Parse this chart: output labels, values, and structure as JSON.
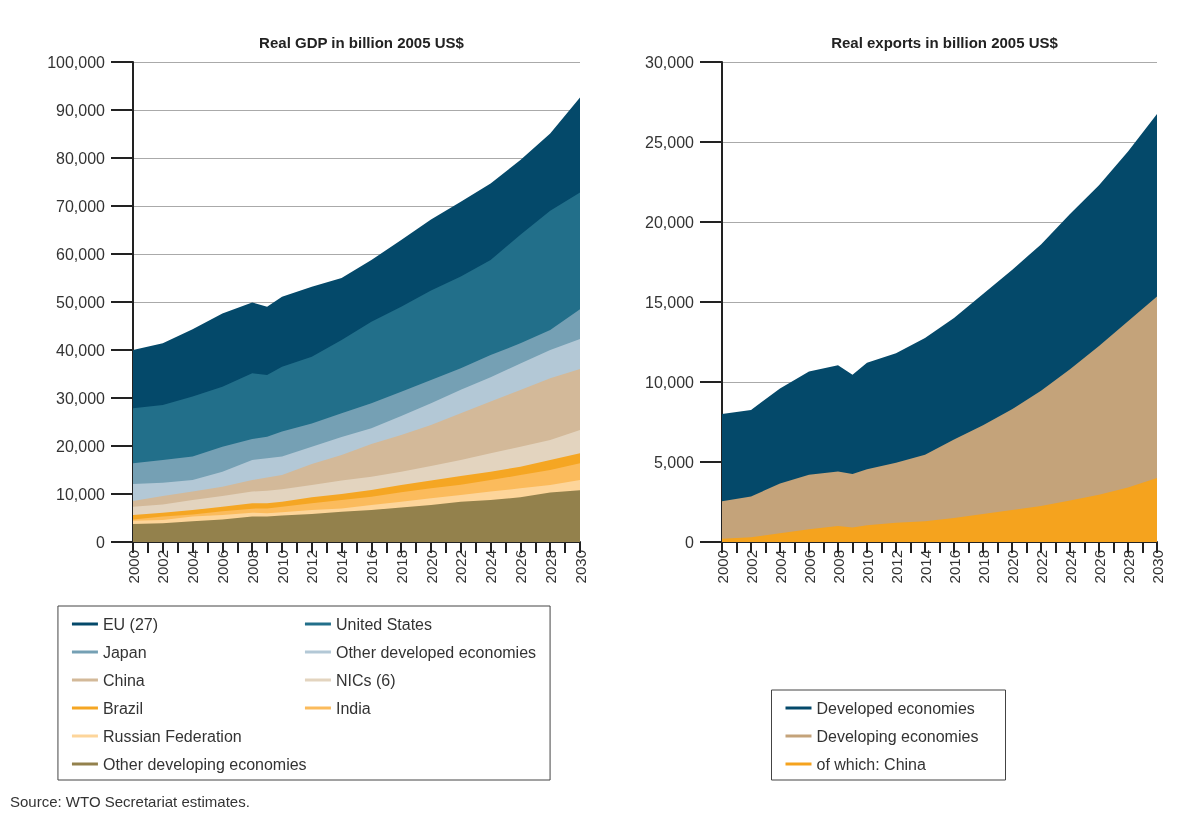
{
  "chart_data": [
    {
      "type": "area",
      "title": "Real GDP in billion 2005 US$",
      "stacked": true,
      "grid": "y",
      "legend": "bottom",
      "marker": "none",
      "x": [
        2000,
        2002,
        2004,
        2006,
        2008,
        2009,
        2010,
        2012,
        2014,
        2016,
        2018,
        2020,
        2022,
        2024,
        2026,
        2028,
        2030
      ],
      "xlim": [
        2000,
        2030
      ],
      "xticks": [
        2000,
        {
          "value": 2001,
          "label": null
        },
        2002,
        {
          "value": 2003,
          "label": null
        },
        2004,
        {
          "value": 2005,
          "label": null
        },
        2006,
        {
          "value": 2007,
          "label": null
        },
        2008,
        {
          "value": 2009,
          "label": null
        },
        2010,
        {
          "value": 2011,
          "label": null
        },
        2012,
        {
          "value": 2013,
          "label": null
        },
        2014,
        {
          "value": 2015,
          "label": null
        },
        2016,
        {
          "value": 2017,
          "label": null
        },
        2018,
        {
          "value": 2019,
          "label": null
        },
        2020,
        {
          "value": 2021,
          "label": null
        },
        2022,
        {
          "value": 2023,
          "label": null
        },
        2024,
        {
          "value": 2025,
          "label": null
        },
        2026,
        {
          "value": 2027,
          "label": null
        },
        2028,
        {
          "value": 2029,
          "label": null
        },
        2030
      ],
      "ylim": [
        0,
        100000
      ],
      "yticks": [
        0,
        {
          "value": 10000,
          "label": "10,000"
        },
        {
          "value": 20000,
          "label": "20,000"
        },
        {
          "value": 30000,
          "label": "30,000"
        },
        {
          "value": 40000,
          "label": "40,000"
        },
        {
          "value": 50000,
          "label": "50,000"
        },
        {
          "value": 60000,
          "label": "60,000"
        },
        {
          "value": 70000,
          "label": "70,000"
        },
        {
          "value": 80000,
          "label": "80,000"
        },
        {
          "value": 90000,
          "label": "90,000"
        },
        {
          "value": 100000,
          "label": "100,000"
        }
      ],
      "series": [
        {
          "name": "Other developing economies",
          "color": "#93814c",
          "values": [
            3750,
            3900,
            4300,
            4700,
            5300,
            5300,
            5500,
            5850,
            6300,
            6650,
            7200,
            7700,
            8400,
            8750,
            9300,
            10300,
            10800
          ]
        },
        {
          "name": "Russian Federation",
          "color": "#fdd59a",
          "values": [
            700,
            700,
            1000,
            900,
            800,
            700,
            700,
            800,
            700,
            1050,
            1200,
            1400,
            1400,
            1750,
            1900,
            1600,
            2100
          ]
        },
        {
          "name": "India",
          "color": "#fbbb5c",
          "values": [
            250,
            700,
            450,
            800,
            850,
            1000,
            1150,
            1400,
            1750,
            1750,
            1950,
            2100,
            2150,
            2400,
            2750,
            3100,
            3500
          ]
        },
        {
          "name": "Brazil",
          "color": "#f5a623",
          "values": [
            900,
            800,
            900,
            950,
            1100,
            1050,
            1050,
            1250,
            1250,
            1400,
            1550,
            1600,
            1800,
            1750,
            1750,
            2100,
            2100
          ]
        },
        {
          "name": "NICs (6)",
          "color": "#e3d4bf",
          "values": [
            1750,
            1700,
            2100,
            2250,
            2450,
            2650,
            2600,
            2600,
            2800,
            2750,
            2750,
            3050,
            3350,
            3850,
            4150,
            4150,
            4850
          ]
        },
        {
          "name": "China",
          "color": "#d3b999",
          "values": [
            1200,
            1800,
            1750,
            1900,
            2400,
            2750,
            2950,
            4350,
            5300,
            6800,
            7650,
            8550,
            9700,
            10750,
            11800,
            12850,
            12700
          ]
        },
        {
          "name": "Other developed economies",
          "color": "#b3c8d6",
          "values": [
            3550,
            2750,
            2400,
            3150,
            4200,
            4000,
            3850,
            3600,
            3800,
            3300,
            3950,
            4500,
            4900,
            5050,
            5550,
            5900,
            6250
          ]
        },
        {
          "name": "Japan",
          "color": "#75a0b4",
          "values": [
            4300,
            4750,
            4900,
            5200,
            4350,
            4500,
            5200,
            4850,
            4900,
            5200,
            5050,
            4850,
            4500,
            4650,
            4200,
            4150,
            6200
          ]
        },
        {
          "name": "United States",
          "color": "#226f8a",
          "values": [
            11450,
            11450,
            12500,
            12500,
            13700,
            12850,
            13500,
            13900,
            15300,
            17000,
            17700,
            18650,
            19100,
            19800,
            22600,
            24850,
            24300
          ]
        },
        {
          "name": "EU (27)",
          "color": "#04496a",
          "values": [
            12150,
            12850,
            14000,
            15250,
            14750,
            14200,
            14600,
            14600,
            12900,
            12850,
            13900,
            14800,
            15600,
            15950,
            15600,
            16100,
            19800
          ]
        }
      ]
    },
    {
      "type": "area",
      "title": "Real exports in billion 2005 US$",
      "stacked": true,
      "grid": "y",
      "legend": "bottom",
      "marker": "none",
      "x": [
        2000,
        2002,
        2004,
        2006,
        2008,
        2009,
        2010,
        2012,
        2014,
        2016,
        2018,
        2020,
        2022,
        2024,
        2026,
        2028,
        2030
      ],
      "xlim": [
        2000,
        2030
      ],
      "xticks": [
        2000,
        {
          "value": 2001,
          "label": null
        },
        2002,
        {
          "value": 2003,
          "label": null
        },
        2004,
        {
          "value": 2005,
          "label": null
        },
        2006,
        {
          "value": 2007,
          "label": null
        },
        2008,
        {
          "value": 2009,
          "label": null
        },
        2010,
        {
          "value": 2011,
          "label": null
        },
        2012,
        {
          "value": 2013,
          "label": null
        },
        2014,
        {
          "value": 2015,
          "label": null
        },
        2016,
        {
          "value": 2017,
          "label": null
        },
        2018,
        {
          "value": 2019,
          "label": null
        },
        2020,
        {
          "value": 2021,
          "label": null
        },
        2022,
        {
          "value": 2023,
          "label": null
        },
        2024,
        {
          "value": 2025,
          "label": null
        },
        2026,
        {
          "value": 2027,
          "label": null
        },
        2028,
        {
          "value": 2029,
          "label": null
        },
        2030
      ],
      "ylim": [
        0,
        30000
      ],
      "yticks": [
        0,
        {
          "value": 5000,
          "label": "5,000"
        },
        {
          "value": 10000,
          "label": "10,000"
        },
        {
          "value": 15000,
          "label": "15,000"
        },
        {
          "value": 20000,
          "label": "20,000"
        },
        {
          "value": 25000,
          "label": "25,000"
        },
        {
          "value": 30000,
          "label": "30,000"
        }
      ],
      "annotations": [
        "Source: WTO Secretariat estimates."
      ],
      "series": [
        {
          "name": "of which: China",
          "color": "#f5a31e",
          "values": [
            200,
            300,
            550,
            800,
            1000,
            900,
            1050,
            1200,
            1300,
            1500,
            1750,
            2000,
            2250,
            2600,
            2950,
            3400,
            4000
          ]
        },
        {
          "name": "Developing economies",
          "color": "#c4a37a",
          "values": [
            2350,
            2550,
            3100,
            3400,
            3400,
            3350,
            3500,
            3750,
            4150,
            4900,
            5550,
            6300,
            7200,
            8200,
            9300,
            10400,
            11350
          ]
        },
        {
          "name": "Developed economies",
          "color": "#04496a",
          "values": [
            5450,
            5400,
            5950,
            6450,
            6650,
            6200,
            6650,
            6850,
            7300,
            7600,
            8200,
            8700,
            9150,
            9700,
            10050,
            10600,
            11400
          ]
        }
      ]
    }
  ]
}
